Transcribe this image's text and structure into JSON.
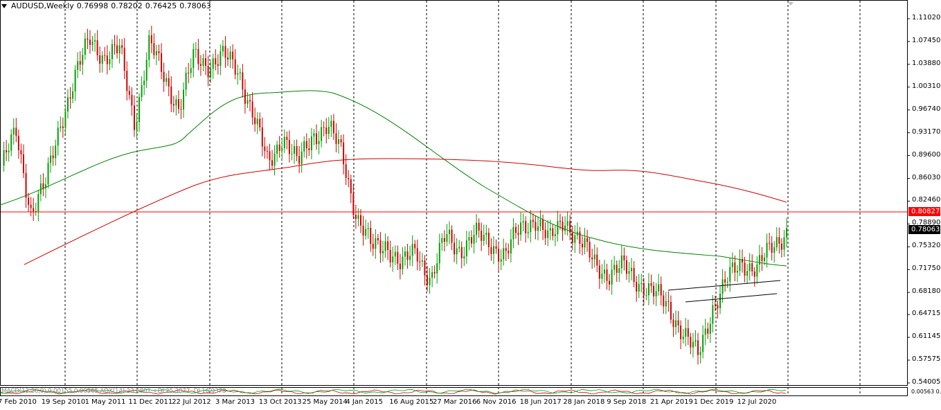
{
  "header": {
    "symbol": "AUDUSD,Weekly",
    "open": "0.76998",
    "high": "0.78202",
    "low": "0.76425",
    "close": "0.78063"
  },
  "price_axis": {
    "ticks": [
      "1.11020",
      "1.07450",
      "1.03880",
      "1.00310",
      "0.96740",
      "0.93170",
      "0.89600",
      "0.86030",
      "0.82460",
      "0.78890",
      "0.75320",
      "0.71750",
      "0.68180",
      "0.64715",
      "0.61145",
      "0.57575",
      "0.54005"
    ],
    "horizontal_line_label": "0.80827",
    "current_price_label": "0.78063"
  },
  "time_axis": {
    "ticks": [
      "7 Feb 2010",
      "19 Sep 2010",
      "1 May 2011",
      "11 Dec 2011",
      "22 Jul 2012",
      "3 Mar 2013",
      "13 Oct 2013",
      "25 May 2014",
      "4 Jan 2015",
      "16 Aug 2015",
      "27 Mar 2016",
      "6 Nov 2016",
      "18 Jun 2017",
      "28 Jan 2018",
      "9 Sep 2018",
      "21 Apr 2019",
      "1 Dec 2019",
      "12 Jul 2020"
    ]
  },
  "indicator_strip": {
    "text": "MACD(12,26,9) 0.00155 0.00565 ADX(14) 23.6801 +DI 25.3877 -DI 16.9373",
    "right_values": "0.00563 0.00"
  },
  "colors": {
    "bull": "#00a000",
    "bear": "#d00000",
    "ma_fast": "#008000",
    "ma_slow": "#cc0000",
    "hline": "#ff0000",
    "grid": "#000000"
  },
  "chart_data": {
    "type": "candlestick",
    "ylim": [
      0.54,
      1.1102
    ],
    "series": [
      {
        "name": "AUDUSD,Weekly",
        "values": [
          0.88,
          0.93,
          0.81,
          0.85,
          0.95,
          1.02,
          1.08,
          1.05,
          1.06,
          0.95,
          1.07,
          1.02,
          0.97,
          1.05,
          1.04,
          1.05,
          1.03,
          0.96,
          0.88,
          0.93,
          0.88,
          0.93,
          0.94,
          0.9,
          0.8,
          0.75,
          0.76,
          0.72,
          0.75,
          0.7,
          0.77,
          0.75,
          0.77,
          0.76,
          0.74,
          0.78,
          0.8,
          0.76,
          0.8,
          0.76,
          0.73,
          0.71,
          0.72,
          0.7,
          0.68,
          0.66,
          0.62,
          0.58,
          0.66,
          0.7,
          0.73,
          0.72,
          0.75,
          0.78
        ]
      }
    ]
  }
}
